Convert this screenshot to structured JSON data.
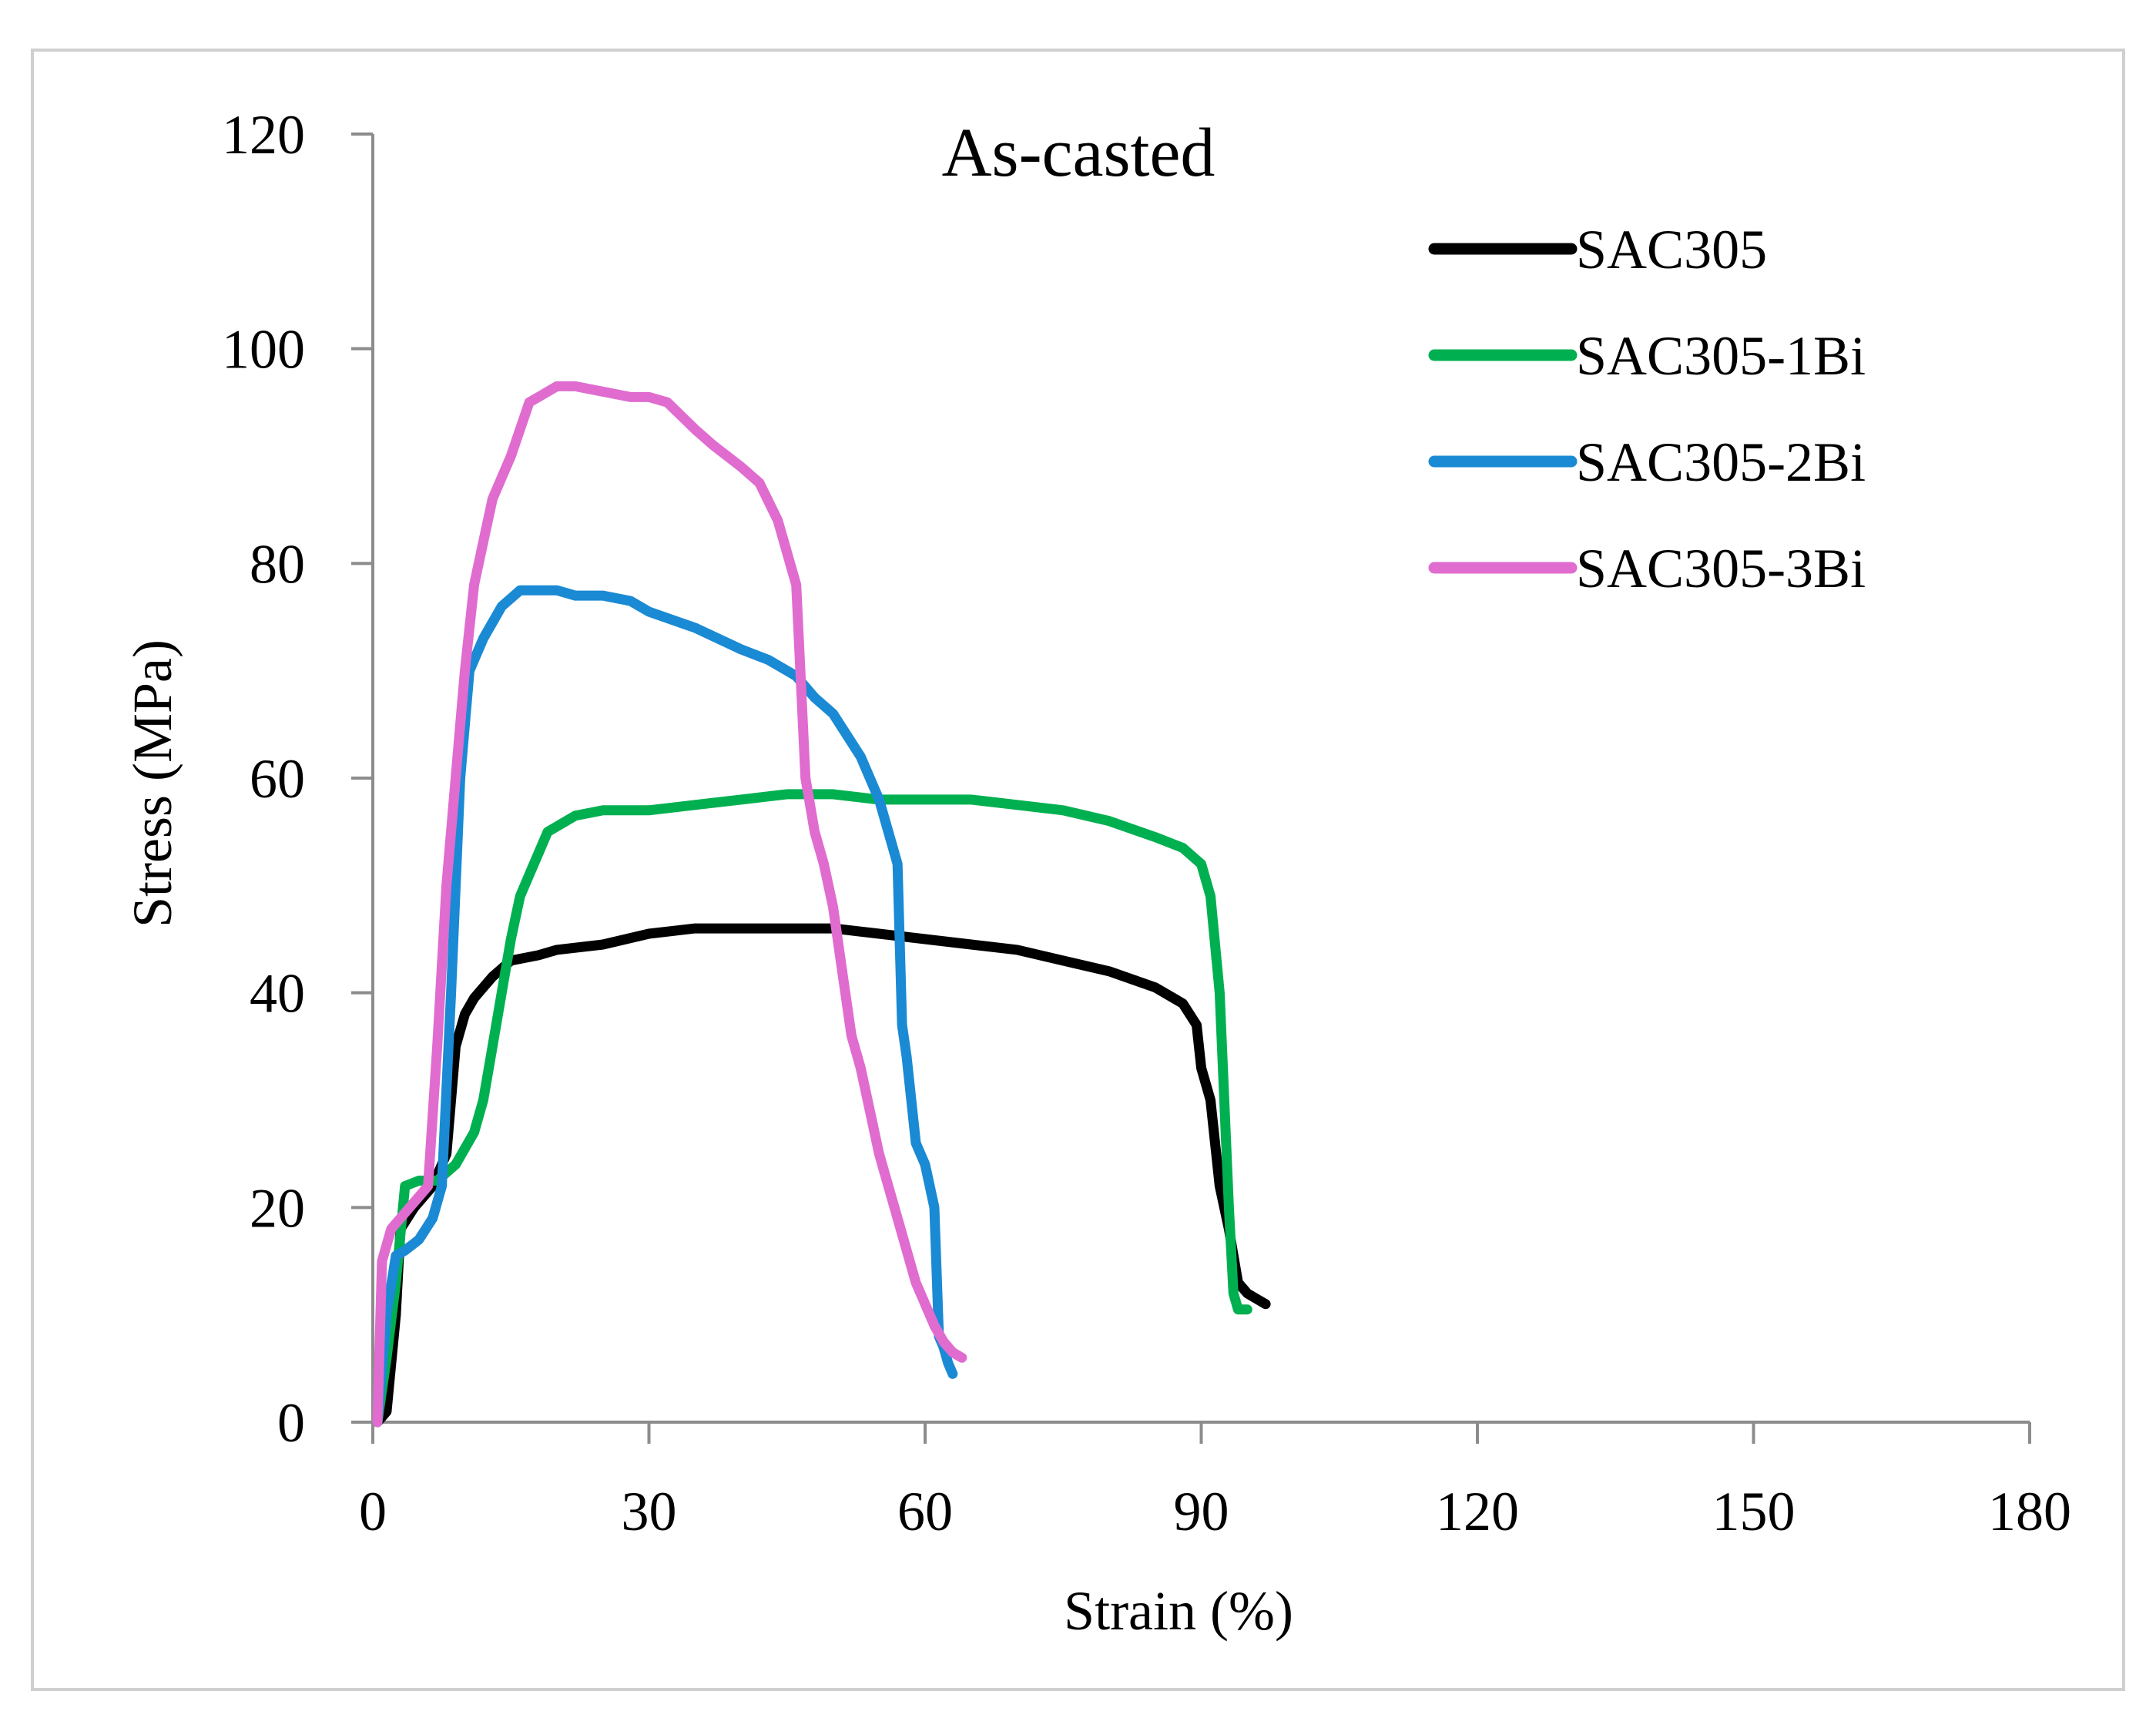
{
  "chart_data": {
    "type": "line",
    "title": "As-casted",
    "xlabel": "Strain (%)",
    "ylabel": "Stress (MPa)",
    "xlim": [
      0,
      180
    ],
    "ylim": [
      0,
      120
    ],
    "xticks": [
      0,
      30,
      60,
      90,
      120,
      150,
      180
    ],
    "yticks": [
      0,
      20,
      40,
      60,
      80,
      100,
      120
    ],
    "xtick_labels": [
      "0",
      "30",
      "60",
      "90",
      "120",
      "150",
      "180"
    ],
    "ytick_labels": [
      "0",
      "20",
      "40",
      "60",
      "80",
      "100",
      "120"
    ],
    "grid": false,
    "legend_position": "top-right",
    "series": [
      {
        "name": "SAC305",
        "color": "#000000",
        "x": [
          0.5,
          1.5,
          2.5,
          3.0,
          4.5,
          6.5,
          8.0,
          9.0,
          10.0,
          11.0,
          12.0,
          13.0,
          15.0,
          18.0,
          20.0,
          25.0,
          30.0,
          35.0,
          40.0,
          45.0,
          50.0,
          55.0,
          60.0,
          65.0,
          70.0,
          75.0,
          80.0,
          85.0,
          88.0,
          89.5,
          90.0,
          91.0,
          92.0,
          93.0,
          94.0,
          95.0,
          96.0,
          97.0
        ],
        "y": [
          0,
          1,
          10,
          18,
          20,
          22,
          25,
          35,
          38,
          39.5,
          40.5,
          41.5,
          43,
          43.5,
          44,
          44.5,
          45.5,
          46,
          46,
          46,
          46,
          45.5,
          45,
          44.5,
          44,
          43,
          42,
          40.5,
          39,
          37,
          33,
          30,
          22,
          18,
          13,
          12,
          11.5,
          11
        ]
      },
      {
        "name": "SAC305-1Bi",
        "color": "#00b050",
        "x": [
          0.5,
          1.5,
          2.5,
          3.5,
          5.0,
          7.0,
          9.0,
          11.0,
          12.0,
          13.0,
          14.0,
          15.0,
          16.0,
          17.0,
          18.0,
          19.0,
          20.0,
          22.0,
          25.0,
          30.0,
          35.0,
          40.0,
          45.0,
          50.0,
          55.0,
          60.0,
          65.0,
          70.0,
          75.0,
          80.0,
          85.0,
          88.0,
          90.0,
          91.0,
          92.0,
          93.0,
          93.5,
          94.0,
          95.0
        ],
        "y": [
          0,
          6,
          13,
          22,
          22.5,
          22.5,
          24,
          27,
          30,
          35,
          40,
          45,
          49,
          51,
          53,
          55,
          55.5,
          56.5,
          57,
          57,
          57.5,
          58,
          58.5,
          58.5,
          58,
          58,
          58,
          57.5,
          57,
          56,
          54.5,
          53.5,
          52,
          49,
          40,
          20,
          12,
          10.5,
          10.5
        ]
      },
      {
        "name": "SAC305-2Bi",
        "color": "#1a8ad4",
        "x": [
          0.5,
          1.5,
          2.5,
          3.5,
          5.0,
          6.5,
          7.5,
          8.5,
          9.5,
          10.5,
          12.0,
          14.0,
          16.0,
          18.0,
          20.0,
          22.0,
          25.0,
          28.0,
          30.0,
          35.0,
          40.0,
          43.0,
          46.0,
          48.0,
          50.0,
          53.0,
          55.0,
          57.0,
          57.5,
          58.0,
          59.0,
          60.0,
          61.0,
          61.5,
          62.0,
          62.5,
          63.0
        ],
        "y": [
          0,
          10,
          15.5,
          16,
          17,
          19,
          22,
          40,
          60,
          70,
          73,
          76,
          77.5,
          77.5,
          77.5,
          77,
          77,
          76.5,
          75.5,
          74,
          72,
          71,
          69.5,
          67.5,
          66,
          62,
          58,
          52,
          37,
          34,
          26,
          24,
          20,
          8,
          7,
          5.5,
          4.5
        ]
      },
      {
        "name": "SAC305-3Bi",
        "color": "#e06cd0",
        "x": [
          0.5,
          1.0,
          2.0,
          4.0,
          6.0,
          7.0,
          8.0,
          9.0,
          10.0,
          11.0,
          12.0,
          13.0,
          14.0,
          15.0,
          16.0,
          17.0,
          18.0,
          20.0,
          22.0,
          25.0,
          28.0,
          30.0,
          32.0,
          35.0,
          37.0,
          40.0,
          42.0,
          44.0,
          46.0,
          47.0,
          48.0,
          49.0,
          50.0,
          51.0,
          52.0,
          53.0,
          54.0,
          55.0,
          56.0,
          57.0,
          58.0,
          59.0,
          60.0,
          61.0,
          62.0,
          63.0,
          64.0
        ],
        "y": [
          0,
          15,
          18,
          20,
          22,
          35,
          50,
          60,
          70,
          78,
          82,
          86,
          88,
          90,
          92.5,
          95,
          95.5,
          96.5,
          96.5,
          96,
          95.5,
          95.5,
          95,
          92.5,
          91,
          89,
          87.5,
          84,
          78,
          60,
          55,
          52,
          48,
          42,
          36,
          33,
          29,
          25,
          22,
          19,
          16,
          13,
          11,
          9,
          7.5,
          6.5,
          6
        ]
      }
    ]
  }
}
